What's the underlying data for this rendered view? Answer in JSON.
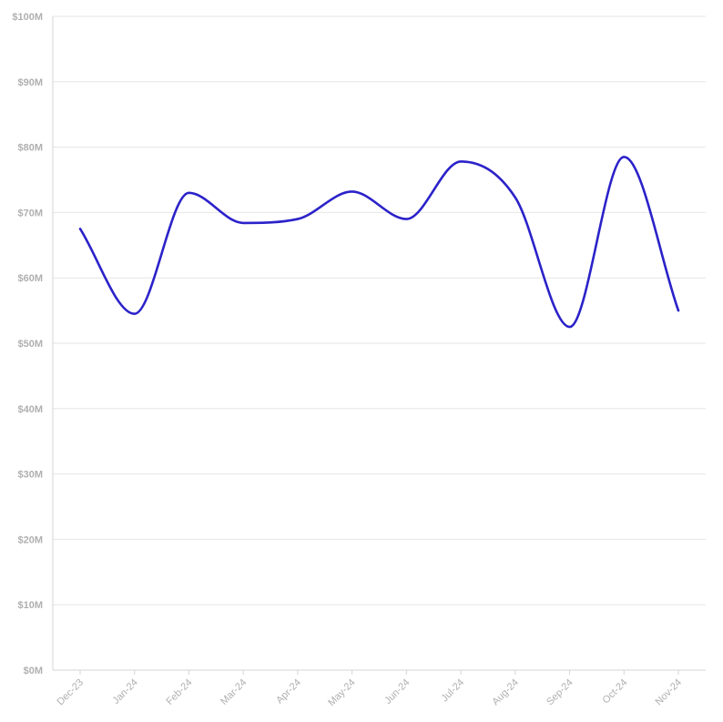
{
  "chart_data": {
    "type": "line",
    "title": "",
    "xlabel": "",
    "ylabel": "",
    "categories": [
      "Dec-23",
      "Jan-24",
      "Feb-24",
      "Mar-24",
      "Apr-24",
      "May-24",
      "Jun-24",
      "Jul-24",
      "Aug-24",
      "Sep-24",
      "Oct-24",
      "Nov-24"
    ],
    "series": [
      {
        "values": [
          67.5,
          54.5,
          73.0,
          68.4,
          69.0,
          73.2,
          69.0,
          77.8,
          72.3,
          52.5,
          78.5,
          55.0
        ]
      }
    ],
    "ylim": [
      0,
      100
    ],
    "yticks": [
      "$0M",
      "$10M",
      "$20M",
      "$30M",
      "$40M",
      "$50M",
      "$60M",
      "$70M",
      "$80M",
      "$90M",
      "$100M"
    ],
    "grid": true,
    "line_color": "#2b22c9"
  }
}
